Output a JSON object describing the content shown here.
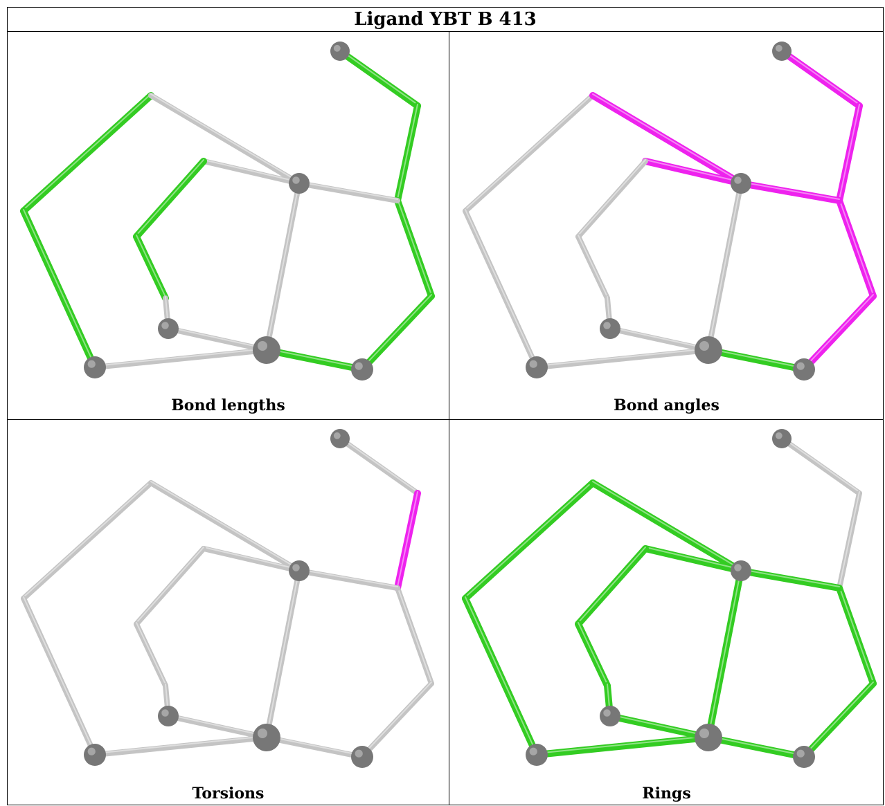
{
  "title": "Ligand YBT B 413",
  "colors": {
    "neutral_bond": "#c4c4c4",
    "highlight_green": "#33cc22",
    "highlight_magenta": "#ee22ee",
    "atom": "#777777"
  },
  "panels": [
    {
      "caption": "Bond lengths",
      "bonds": [
        {
          "bond": "b1-a2",
          "color": "green"
        },
        {
          "bond": "a2-a3",
          "color": "green"
        },
        {
          "bond": "a3-a4",
          "color": "green"
        },
        {
          "bond": "a6-a7",
          "color": "green"
        },
        {
          "bond": "a7-a8",
          "color": "green"
        },
        {
          "bond": "a12-a13",
          "color": "green"
        },
        {
          "bond": "a13-a14",
          "color": "green"
        },
        {
          "bond": "a14-a15",
          "color": "green"
        },
        {
          "bond": "a15-a11",
          "color": "green"
        }
      ]
    },
    {
      "caption": "Bond angles",
      "bonds": [
        {
          "bond": "b1-a2",
          "color": "magenta"
        },
        {
          "bond": "a2-a10",
          "color": "magenta"
        },
        {
          "bond": "a6-a10",
          "color": "magenta"
        },
        {
          "bond": "a10-a12",
          "color": "magenta"
        },
        {
          "bond": "a12-a13",
          "color": "magenta"
        },
        {
          "bond": "a12-a14",
          "color": "magenta"
        },
        {
          "bond": "a14-a15",
          "color": "magenta"
        },
        {
          "bond": "a15-a11",
          "color": "green"
        }
      ]
    },
    {
      "caption": "Torsions",
      "bonds": [
        {
          "bond": "a12-a13",
          "color": "magenta"
        }
      ]
    },
    {
      "caption": "Rings",
      "bonds": [
        {
          "bond": "a2-a3",
          "color": "green"
        },
        {
          "bond": "a3-a4",
          "color": "green"
        },
        {
          "bond": "a4-a5",
          "color": "green"
        },
        {
          "bond": "a5-a9",
          "color": "green"
        },
        {
          "bond": "a2-a10",
          "color": "green"
        },
        {
          "bond": "a6-a10",
          "color": "green"
        },
        {
          "bond": "a6-a7",
          "color": "green"
        },
        {
          "bond": "a7-a8",
          "color": "green"
        },
        {
          "bond": "a8-a9",
          "color": "green"
        },
        {
          "bond": "a9-a10",
          "color": "green"
        },
        {
          "bond": "a10-a12",
          "color": "green"
        },
        {
          "bond": "a12-a14",
          "color": "green"
        },
        {
          "bond": "a14-a15",
          "color": "green"
        },
        {
          "bond": "a15-a16",
          "color": "green"
        },
        {
          "bond": "a16-a9",
          "color": "green"
        }
      ]
    }
  ]
}
